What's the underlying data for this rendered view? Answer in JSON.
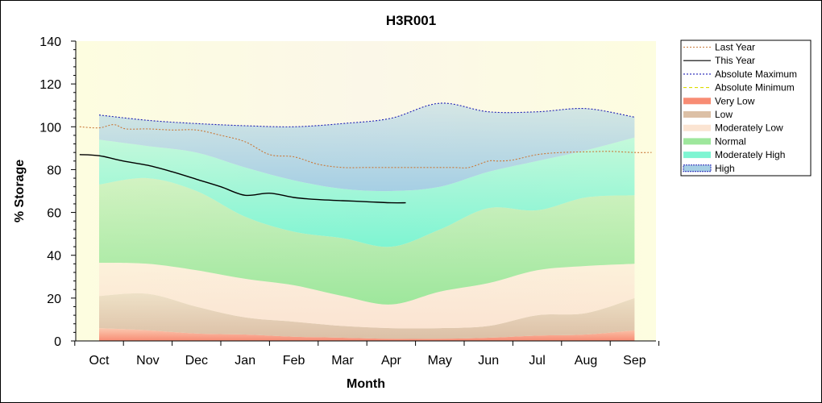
{
  "chart_data": {
    "type": "area",
    "title": "H3R001",
    "xlabel": "Month",
    "ylabel": "% Storage",
    "ylim": [
      0,
      140
    ],
    "y_ticks": [
      0,
      20,
      40,
      60,
      80,
      100,
      120,
      140
    ],
    "categories": [
      "Oct",
      "Nov",
      "Dec",
      "Jan",
      "Feb",
      "Mar",
      "Apr",
      "May",
      "Jun",
      "Jul",
      "Aug",
      "Sep"
    ],
    "legend_position": "right",
    "bands": [
      {
        "name": "Very Low",
        "color": "#f88c74",
        "lower": [
          0,
          0,
          0,
          0,
          0,
          0,
          0,
          0,
          0,
          0,
          0,
          0
        ],
        "upper": [
          6,
          5,
          3.5,
          3,
          2,
          1.5,
          1,
          1,
          1.5,
          2.5,
          3,
          5
        ]
      },
      {
        "name": "Low",
        "color": "#dcc0a6",
        "lower": [
          6,
          5,
          3.5,
          3,
          2,
          1.5,
          1,
          1,
          1.5,
          2.5,
          3,
          5
        ],
        "upper": [
          21,
          22,
          16,
          11,
          9,
          7,
          6,
          6,
          7,
          12,
          13,
          20
        ]
      },
      {
        "name": "Moderately Low",
        "color": "#fbe4d2",
        "lower": [
          21,
          22,
          16,
          11,
          9,
          7,
          6,
          6,
          7,
          12,
          13,
          20
        ],
        "upper": [
          36.5,
          36,
          33,
          29,
          26,
          21,
          17,
          23,
          27,
          33,
          35,
          36
        ]
      },
      {
        "name": "Normal",
        "color": "#9ee79c",
        "lower": [
          36.5,
          36,
          33,
          29,
          26,
          21,
          17,
          23,
          27,
          33,
          35,
          36
        ],
        "upper": [
          73,
          76,
          70,
          58,
          51,
          48,
          44,
          52,
          62,
          61,
          67,
          68
        ]
      },
      {
        "name": "Moderately High",
        "color": "#7ff5d2",
        "lower": [
          73,
          76,
          70,
          58,
          51,
          48,
          44,
          52,
          62,
          61,
          67,
          68
        ],
        "upper": [
          94,
          91,
          88,
          81,
          75,
          71,
          70,
          72,
          79,
          84,
          89,
          95
        ]
      },
      {
        "name": "High",
        "color": "#a6cfe4",
        "lower": [
          94,
          91,
          88,
          81,
          75,
          71,
          70,
          72,
          79,
          84,
          89,
          95
        ],
        "upper": [
          105.5,
          103,
          101.5,
          100.5,
          100,
          101.5,
          104,
          111,
          107,
          107,
          108.5,
          104.5
        ]
      }
    ],
    "series": [
      {
        "name": "Last Year",
        "color": "#c9793a",
        "style": "dotted",
        "x": [
          -0.4,
          0,
          0.3,
          0.55,
          1,
          1.5,
          2,
          2.5,
          3,
          3.5,
          4,
          4.5,
          5,
          5.5,
          6,
          6.5,
          7,
          7.3,
          7.6,
          8,
          8.2,
          8.5,
          9,
          9.5,
          10,
          10.5,
          11,
          11.35
        ],
        "y": [
          100,
          99.5,
          101,
          99,
          99,
          98.5,
          98.5,
          96,
          93,
          87,
          86,
          82.5,
          81,
          81,
          81,
          81,
          81,
          81,
          81,
          84,
          84,
          84.5,
          87,
          88,
          88.3,
          88.5,
          88,
          88
        ]
      },
      {
        "name": "This Year",
        "color": "#000000",
        "style": "solid",
        "x": [
          -0.4,
          0,
          0.5,
          1,
          1.5,
          2,
          2.5,
          3,
          3.5,
          4,
          4.5,
          5,
          5.5,
          6,
          6.3
        ],
        "y": [
          87,
          86.5,
          84,
          82,
          79,
          75.5,
          72,
          68,
          69,
          67,
          66,
          65.5,
          65,
          64.5,
          64.5
        ]
      },
      {
        "name": "Absolute Maximum",
        "color": "#1e1eb4",
        "style": "dotted",
        "x": [
          0,
          1,
          2,
          3,
          4,
          5,
          6,
          7,
          8,
          9,
          10,
          11
        ],
        "y": [
          105.5,
          103,
          101.5,
          100.5,
          100,
          101.5,
          104,
          111,
          107,
          107,
          108.5,
          104.5
        ]
      },
      {
        "name": "Absolute Minimum",
        "color": "#dcdc00",
        "style": "dashed",
        "x": [
          0,
          1,
          2,
          3,
          4,
          5,
          6,
          7,
          8,
          9,
          10,
          11
        ],
        "y": [
          0,
          0,
          0,
          0,
          0,
          0,
          0,
          0,
          0,
          0,
          0,
          0
        ]
      }
    ],
    "legend": [
      {
        "label": "Last Year",
        "kind": "line",
        "color": "#c9793a",
        "style": "dotted"
      },
      {
        "label": "This Year",
        "kind": "line",
        "color": "#000000",
        "style": "solid"
      },
      {
        "label": "Absolute Maximum",
        "kind": "line",
        "color": "#1e1eb4",
        "style": "dotted"
      },
      {
        "label": "Absolute Minimum",
        "kind": "line",
        "color": "#dcdc00",
        "style": "dashed"
      },
      {
        "label": "Very Low",
        "kind": "band",
        "color": "#f88c74"
      },
      {
        "label": "Low",
        "kind": "band",
        "color": "#dcc0a6"
      },
      {
        "label": "Moderately Low",
        "kind": "band",
        "color": "#fbe4d2"
      },
      {
        "label": "Normal",
        "kind": "band",
        "color": "#9ee79c"
      },
      {
        "label": "Moderately High",
        "kind": "band",
        "color": "#7ff5d2"
      },
      {
        "label": "High",
        "kind": "band",
        "color": "#a6cfe4",
        "border": "#1e1eb4"
      }
    ],
    "plot_background": "#fdfde2"
  }
}
